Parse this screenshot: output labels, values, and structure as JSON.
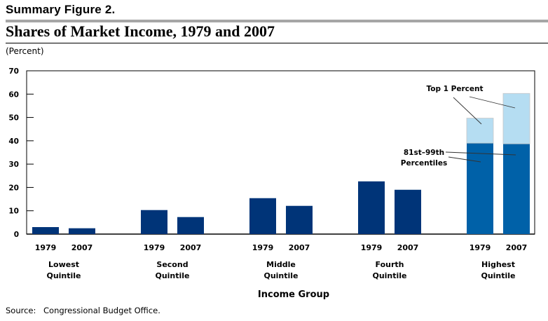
{
  "figure": {
    "label": "Summary Figure 2.",
    "title": "Shares of Market Income, 1979 and 2007",
    "unit": "(Percent)",
    "source_label": "Source:",
    "source_text": "Congressional Budget Office."
  },
  "colors": {
    "navy": "#003478",
    "mid_blue": "#0061a8",
    "light_blue": "#b5ddf2",
    "light_blue_edge": "#c8c8c8"
  },
  "chart_data": {
    "type": "bar",
    "title": "Shares of Market Income, 1979 and 2007",
    "xlabel": "Income Group",
    "ylabel": "(Percent)",
    "ylim": [
      0,
      70
    ],
    "yticks": [
      0,
      10,
      20,
      30,
      40,
      50,
      60,
      70
    ],
    "grid": false,
    "groups": [
      {
        "label": [
          "Lowest",
          "Quintile"
        ],
        "years": [
          "1979",
          "2007"
        ],
        "values": [
          3.0,
          2.5
        ]
      },
      {
        "label": [
          "Second",
          "Quintile"
        ],
        "years": [
          "1979",
          "2007"
        ],
        "values": [
          10.3,
          7.3
        ]
      },
      {
        "label": [
          "Middle",
          "Quintile"
        ],
        "years": [
          "1979",
          "2007"
        ],
        "values": [
          15.4,
          12.1
        ]
      },
      {
        "label": [
          "Fourth",
          "Quintile"
        ],
        "years": [
          "1979",
          "2007"
        ],
        "values": [
          22.6,
          19.0
        ]
      },
      {
        "label": [
          "Highest",
          "Quintile"
        ],
        "years": [
          "1979",
          "2007"
        ],
        "values": [
          49.7,
          60.3
        ],
        "stacked": [
          {
            "name": "81st–99th Percentiles",
            "values": [
              39.0,
              38.7
            ]
          },
          {
            "name": "Top 1 Percent",
            "values": [
              10.7,
              21.6
            ]
          }
        ]
      }
    ],
    "annotations": [
      {
        "text": "Top 1 Percent",
        "points_to": "Top 1 Percent segments of Highest Quintile bars"
      },
      {
        "text": [
          "81st–99th",
          "Percentiles"
        ],
        "points_to": "81st–99th Percentiles segments of Highest Quintile bars"
      }
    ]
  }
}
